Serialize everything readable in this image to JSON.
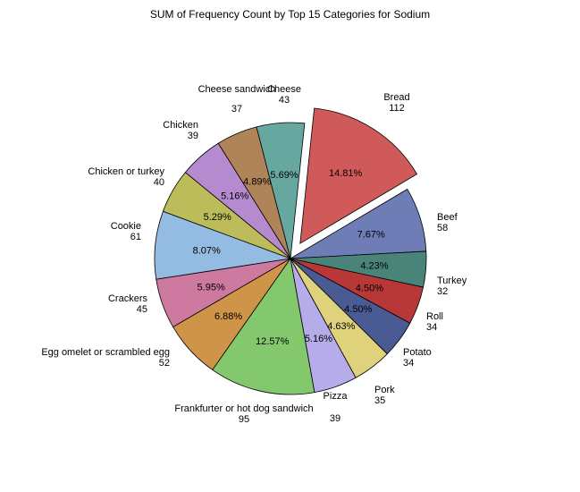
{
  "chart_data": {
    "type": "pie",
    "title": "SUM of Frequency Count by Top 15 Categories for Sodium",
    "slices": [
      {
        "name": "Bread",
        "value": 112,
        "percent": "14.81%",
        "color": "#D05A5A",
        "exploded": true
      },
      {
        "name": "Beef",
        "value": 58,
        "percent": "7.67%",
        "color": "#6E7DB6",
        "exploded": false
      },
      {
        "name": "Turkey",
        "value": 32,
        "percent": "4.23%",
        "color": "#4A8478",
        "exploded": false
      },
      {
        "name": "Roll",
        "value": 34,
        "percent": "4.50%",
        "color": "#B83838",
        "exploded": false
      },
      {
        "name": "Potato",
        "value": 34,
        "percent": "4.50%",
        "color": "#4A5A92",
        "exploded": false
      },
      {
        "name": "Pork",
        "value": 35,
        "percent": "4.63%",
        "color": "#DED27C",
        "exploded": false
      },
      {
        "name": "Pizza",
        "value": 39,
        "percent": "5.16%",
        "color": "#B6ACEA",
        "exploded": false
      },
      {
        "name": "Frankfurter or hot dog sandwich",
        "value": 95,
        "percent": "12.57%",
        "color": "#84C86E",
        "exploded": false
      },
      {
        "name": "Egg omelet or scrambled egg",
        "value": 52,
        "percent": "6.88%",
        "color": "#D09448",
        "exploded": false
      },
      {
        "name": "Crackers",
        "value": 45,
        "percent": "5.95%",
        "color": "#CE7AA0",
        "exploded": false
      },
      {
        "name": "Cookie",
        "value": 61,
        "percent": "8.07%",
        "color": "#94BCE2",
        "exploded": false
      },
      {
        "name": "Chicken or turkey",
        "value": 40,
        "percent": "5.29%",
        "color": "#BCBC5A",
        "exploded": false
      },
      {
        "name": "Chicken",
        "value": 39,
        "percent": "5.16%",
        "color": "#B68ACE",
        "exploded": false
      },
      {
        "name": "Cheese sandwich",
        "value": 37,
        "percent": "4.89%",
        "color": "#AE8458",
        "exploded": false
      },
      {
        "name": "Cheese",
        "value": 43,
        "percent": "5.69%",
        "color": "#66A8A0",
        "exploded": false
      }
    ]
  }
}
